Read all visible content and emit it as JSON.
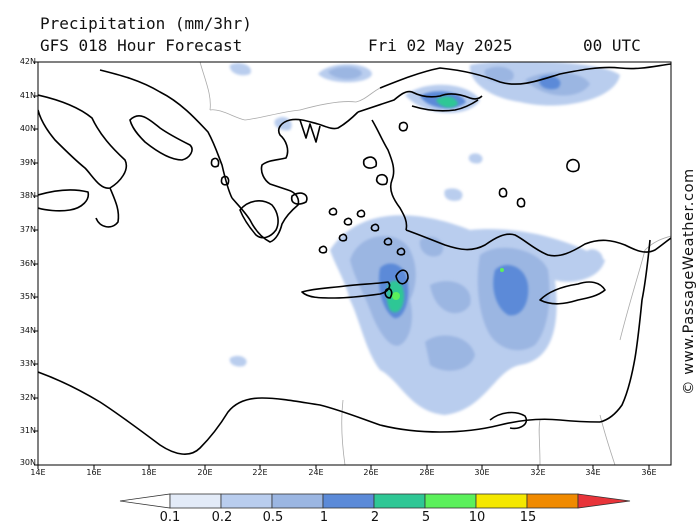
{
  "header": {
    "title": "Precipitation (mm/3hr)",
    "model": "GFS 018 Hour Forecast",
    "date": "Fri 02 May 2025",
    "time": "00 UTC"
  },
  "credit": "© www.PassageWeather.com",
  "map": {
    "lat_labels": [
      "42N",
      "41N",
      "40N",
      "39N",
      "38N",
      "37N",
      "36N",
      "35N",
      "34N",
      "33N",
      "32N",
      "31N",
      "30N"
    ],
    "lon_labels": [
      "14E",
      "16E",
      "18E",
      "20E",
      "22E",
      "24E",
      "26E",
      "28E",
      "30E",
      "32E",
      "34E",
      "36E"
    ],
    "land_color": "#ffffff",
    "coast_color": "#000000",
    "border_color": "#aaaaaa"
  },
  "colorbar": {
    "labels": [
      "0.1",
      "0.2",
      "0.5",
      "1",
      "2",
      "5",
      "10",
      "15"
    ],
    "colors": [
      "#e3ebf8",
      "#b9cdee",
      "#9bb6e2",
      "#5b8ad8",
      "#2fc795",
      "#5bf05b",
      "#f4e800",
      "#f08a00",
      "#e8343a"
    ]
  }
}
